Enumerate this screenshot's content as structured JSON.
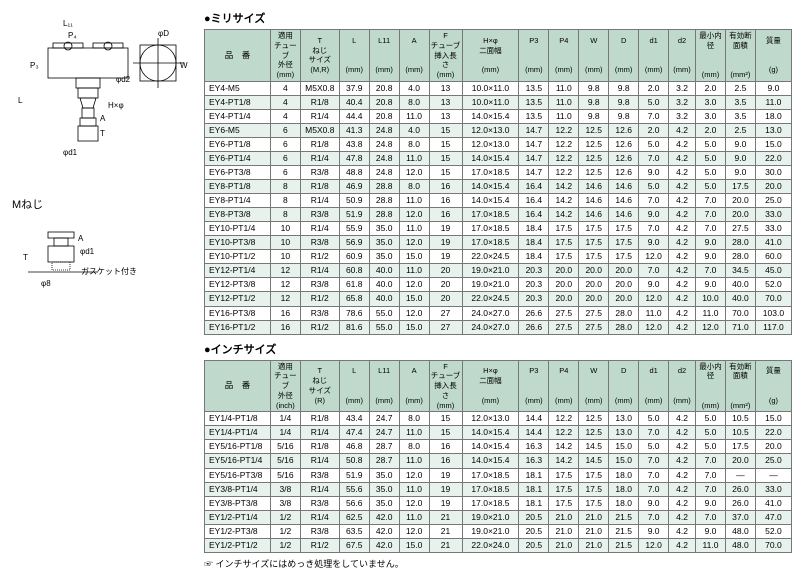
{
  "labels": {
    "mm_title": "●ミリサイズ",
    "inch_title": "●インチサイズ",
    "m_thread": "Mねじ",
    "gasket_note": "ガスケット付き",
    "footnote": "インチサイズにはめっき処理をしていません。"
  },
  "cols": {
    "pn": "品　番",
    "tube_mm": "適用\nチューブ\n外径\n(mm)",
    "tube_in": "適用\nチューブ\n外径\n(inch)",
    "thread_mr": "T\nねじ\nサイズ\n(M,R)",
    "thread_r": "T\nねじ\nサイズ\n(R)",
    "L": "L\n\n\n(mm)",
    "L11": "L11\n\n\n(mm)",
    "A": "A\n\n\n(mm)",
    "F": "F\nチューブ\n挿入長さ\n(mm)",
    "H": "H×φ\n二面幅\n\n(mm)",
    "P3": "P3\n\n\n(mm)",
    "P4": "P4\n\n\n(mm)",
    "W": "W\n\n\n(mm)",
    "D": "D\n\n\n(mm)",
    "d1": "d1\n\n\n(mm)",
    "d2": "d2\n\n\n(mm)",
    "min_id": "最小内径\n\n\n(mm)",
    "area": "有効断面積\n\n\n(mm²)",
    "mass": "質量\n\n\n(g)"
  },
  "mm_rows": [
    [
      "EY4-M5",
      "4",
      "M5X0.8",
      "37.9",
      "20.8",
      "4.0",
      "13",
      "10.0×11.0",
      "13.5",
      "11.0",
      "9.8",
      "9.8",
      "2.0",
      "3.2",
      "2.0",
      "2.5",
      "9.0"
    ],
    [
      "EY4-PT1/8",
      "4",
      "R1/8",
      "40.4",
      "20.8",
      "8.0",
      "13",
      "10.0×11.0",
      "13.5",
      "11.0",
      "9.8",
      "9.8",
      "5.0",
      "3.2",
      "3.0",
      "3.5",
      "11.0"
    ],
    [
      "EY4-PT1/4",
      "4",
      "R1/4",
      "44.4",
      "20.8",
      "11.0",
      "13",
      "14.0×15.4",
      "13.5",
      "11.0",
      "9.8",
      "9.8",
      "7.0",
      "3.2",
      "3.0",
      "3.5",
      "18.0"
    ],
    [
      "EY6-M5",
      "6",
      "M5X0.8",
      "41.3",
      "24.8",
      "4.0",
      "15",
      "12.0×13.0",
      "14.7",
      "12.2",
      "12.5",
      "12.6",
      "2.0",
      "4.2",
      "2.0",
      "2.5",
      "13.0"
    ],
    [
      "EY6-PT1/8",
      "6",
      "R1/8",
      "43.8",
      "24.8",
      "8.0",
      "15",
      "12.0×13.0",
      "14.7",
      "12.2",
      "12.5",
      "12.6",
      "5.0",
      "4.2",
      "5.0",
      "9.0",
      "15.0"
    ],
    [
      "EY6-PT1/4",
      "6",
      "R1/4",
      "47.8",
      "24.8",
      "11.0",
      "15",
      "14.0×15.4",
      "14.7",
      "12.2",
      "12.5",
      "12.6",
      "7.0",
      "4.2",
      "5.0",
      "9.0",
      "22.0"
    ],
    [
      "EY6-PT3/8",
      "6",
      "R3/8",
      "48.8",
      "24.8",
      "12.0",
      "15",
      "17.0×18.5",
      "14.7",
      "12.2",
      "12.5",
      "12.6",
      "9.0",
      "4.2",
      "5.0",
      "9.0",
      "30.0"
    ],
    [
      "EY8-PT1/8",
      "8",
      "R1/8",
      "46.9",
      "28.8",
      "8.0",
      "16",
      "14.0×15.4",
      "16.4",
      "14.2",
      "14.6",
      "14.6",
      "5.0",
      "4.2",
      "5.0",
      "17.5",
      "20.0"
    ],
    [
      "EY8-PT1/4",
      "8",
      "R1/4",
      "50.9",
      "28.8",
      "11.0",
      "16",
      "14.0×15.4",
      "16.4",
      "14.2",
      "14.6",
      "14.6",
      "7.0",
      "4.2",
      "7.0",
      "20.0",
      "25.0"
    ],
    [
      "EY8-PT3/8",
      "8",
      "R3/8",
      "51.9",
      "28.8",
      "12.0",
      "16",
      "17.0×18.5",
      "16.4",
      "14.2",
      "14.6",
      "14.6",
      "9.0",
      "4.2",
      "7.0",
      "20.0",
      "33.0"
    ],
    [
      "EY10-PT1/4",
      "10",
      "R1/4",
      "55.9",
      "35.0",
      "11.0",
      "19",
      "17.0×18.5",
      "18.4",
      "17.5",
      "17.5",
      "17.5",
      "7.0",
      "4.2",
      "7.0",
      "27.5",
      "33.0"
    ],
    [
      "EY10-PT3/8",
      "10",
      "R3/8",
      "56.9",
      "35.0",
      "12.0",
      "19",
      "17.0×18.5",
      "18.4",
      "17.5",
      "17.5",
      "17.5",
      "9.0",
      "4.2",
      "9.0",
      "28.0",
      "41.0"
    ],
    [
      "EY10-PT1/2",
      "10",
      "R1/2",
      "60.9",
      "35.0",
      "15.0",
      "19",
      "22.0×24.5",
      "18.4",
      "17.5",
      "17.5",
      "17.5",
      "12.0",
      "4.2",
      "9.0",
      "28.0",
      "60.0"
    ],
    [
      "EY12-PT1/4",
      "12",
      "R1/4",
      "60.8",
      "40.0",
      "11.0",
      "20",
      "19.0×21.0",
      "20.3",
      "20.0",
      "20.0",
      "20.0",
      "7.0",
      "4.2",
      "7.0",
      "34.5",
      "45.0"
    ],
    [
      "EY12-PT3/8",
      "12",
      "R3/8",
      "61.8",
      "40.0",
      "12.0",
      "20",
      "19.0×21.0",
      "20.3",
      "20.0",
      "20.0",
      "20.0",
      "9.0",
      "4.2",
      "9.0",
      "40.0",
      "52.0"
    ],
    [
      "EY12-PT1/2",
      "12",
      "R1/2",
      "65.8",
      "40.0",
      "15.0",
      "20",
      "22.0×24.5",
      "20.3",
      "20.0",
      "20.0",
      "20.0",
      "12.0",
      "4.2",
      "10.0",
      "40.0",
      "70.0"
    ],
    [
      "EY16-PT3/8",
      "16",
      "R3/8",
      "78.6",
      "55.0",
      "12.0",
      "27",
      "24.0×27.0",
      "26.6",
      "27.5",
      "27.5",
      "28.0",
      "11.0",
      "4.2",
      "11.0",
      "70.0",
      "103.0"
    ],
    [
      "EY16-PT1/2",
      "16",
      "R1/2",
      "81.6",
      "55.0",
      "15.0",
      "27",
      "24.0×27.0",
      "26.6",
      "27.5",
      "27.5",
      "28.0",
      "12.0",
      "4.2",
      "12.0",
      "71.0",
      "117.0"
    ]
  ],
  "in_rows": [
    [
      "EY1/4-PT1/8",
      "1/4",
      "R1/8",
      "43.4",
      "24.7",
      "8.0",
      "15",
      "12.0×13.0",
      "14.4",
      "12.2",
      "12.5",
      "13.0",
      "5.0",
      "4.2",
      "5.0",
      "10.5",
      "15.0"
    ],
    [
      "EY1/4-PT1/4",
      "1/4",
      "R1/4",
      "47.4",
      "24.7",
      "11.0",
      "15",
      "14.0×15.4",
      "14.4",
      "12.2",
      "12.5",
      "13.0",
      "7.0",
      "4.2",
      "5.0",
      "10.5",
      "22.0"
    ],
    [
      "EY5/16-PT1/8",
      "5/16",
      "R1/8",
      "46.8",
      "28.7",
      "8.0",
      "16",
      "14.0×15.4",
      "16.3",
      "14.2",
      "14.5",
      "15.0",
      "5.0",
      "4.2",
      "5.0",
      "17.5",
      "20.0"
    ],
    [
      "EY5/16-PT1/4",
      "5/16",
      "R1/4",
      "50.8",
      "28.7",
      "11.0",
      "16",
      "14.0×15.4",
      "16.3",
      "14.2",
      "14.5",
      "15.0",
      "7.0",
      "4.2",
      "7.0",
      "20.0",
      "25.0"
    ],
    [
      "EY5/16-PT3/8",
      "5/16",
      "R3/8",
      "51.9",
      "35.0",
      "12.0",
      "19",
      "17.0×18.5",
      "18.1",
      "17.5",
      "17.5",
      "18.0",
      "7.0",
      "4.2",
      "7.0",
      "—",
      "—"
    ],
    [
      "EY3/8-PT1/4",
      "3/8",
      "R1/4",
      "55.6",
      "35.0",
      "11.0",
      "19",
      "17.0×18.5",
      "18.1",
      "17.5",
      "17.5",
      "18.0",
      "7.0",
      "4.2",
      "7.0",
      "26.0",
      "33.0"
    ],
    [
      "EY3/8-PT3/8",
      "3/8",
      "R3/8",
      "56.6",
      "35.0",
      "12.0",
      "19",
      "17.0×18.5",
      "18.1",
      "17.5",
      "17.5",
      "18.0",
      "9.0",
      "4.2",
      "9.0",
      "26.0",
      "41.0"
    ],
    [
      "EY1/2-PT1/4",
      "1/2",
      "R1/4",
      "62.5",
      "42.0",
      "11.0",
      "21",
      "19.0×21.0",
      "20.5",
      "21.0",
      "21.0",
      "21.5",
      "7.0",
      "4.2",
      "7.0",
      "37.0",
      "47.0"
    ],
    [
      "EY1/2-PT3/8",
      "1/2",
      "R3/8",
      "63.5",
      "42.0",
      "12.0",
      "21",
      "19.0×21.0",
      "20.5",
      "21.0",
      "21.0",
      "21.5",
      "9.0",
      "4.2",
      "9.0",
      "48.0",
      "52.0"
    ],
    [
      "EY1/2-PT1/2",
      "1/2",
      "R1/2",
      "67.5",
      "42.0",
      "15.0",
      "21",
      "22.0×24.0",
      "20.5",
      "21.0",
      "21.0",
      "21.5",
      "12.0",
      "4.2",
      "11.0",
      "48.0",
      "70.0"
    ]
  ]
}
